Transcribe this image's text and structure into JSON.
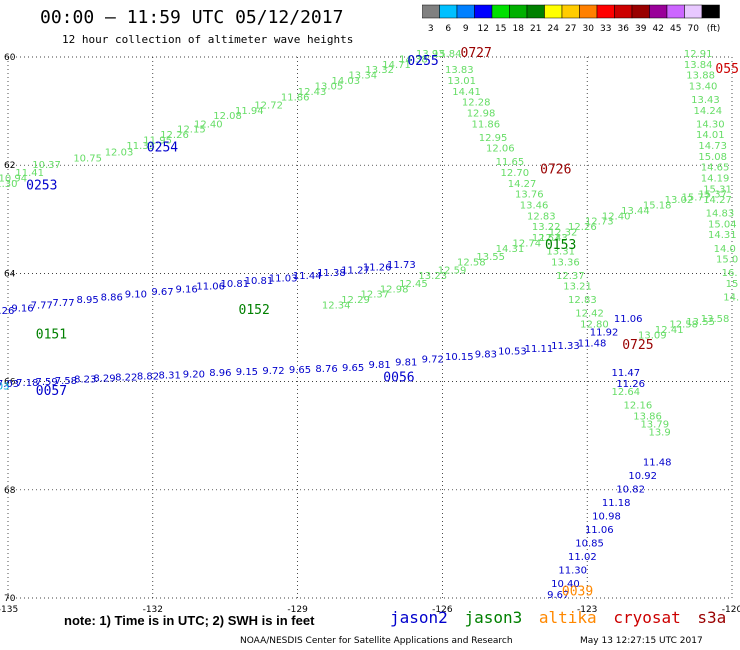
{
  "title": "00:00 – 11:59 UTC 05/12/2017",
  "subtitle": "12 hour collection of altimeter wave heights",
  "colorbar": {
    "units": "(ft)",
    "levels": [
      {
        "label": "3",
        "color": "#808080"
      },
      {
        "label": "6",
        "color": "#00c0ff"
      },
      {
        "label": "9",
        "color": "#0080ff"
      },
      {
        "label": "12",
        "color": "#0000ff"
      },
      {
        "label": "15",
        "color": "#00e000"
      },
      {
        "label": "18",
        "color": "#00b000"
      },
      {
        "label": "21",
        "color": "#008000"
      },
      {
        "label": "24",
        "color": "#ffff00"
      },
      {
        "label": "27",
        "color": "#ffcc00"
      },
      {
        "label": "30",
        "color": "#ff8000"
      },
      {
        "label": "33",
        "color": "#ff0000"
      },
      {
        "label": "36",
        "color": "#cc0000"
      },
      {
        "label": "39",
        "color": "#990000"
      },
      {
        "label": "42",
        "color": "#990099"
      },
      {
        "label": "45",
        "color": "#cc66ff"
      },
      {
        "label": "70",
        "color": "#e8c8ff"
      },
      {
        "label": "",
        "color": "#000000"
      }
    ]
  },
  "axes": {
    "lat_labels": [
      "60",
      "62",
      "64",
      "66",
      "68",
      "70"
    ],
    "lon_labels": [
      "-135",
      "-132",
      "-129",
      "-126",
      "-123",
      "-120"
    ]
  },
  "tracks": [
    {
      "color": "#66dd66",
      "points": [
        {
          "lon": -125.9,
          "lat": 60.0,
          "v": "15.84"
        },
        {
          "lon": -126.25,
          "lat": 60.0,
          "v": "13.93"
        },
        {
          "lon": -126.6,
          "lat": 60.1,
          "v": "14.38"
        },
        {
          "lon": -126.95,
          "lat": 60.2,
          "v": "14.71"
        },
        {
          "lon": -127.3,
          "lat": 60.3,
          "v": "13.32"
        },
        {
          "lon": -127.65,
          "lat": 60.4,
          "v": "13.34"
        },
        {
          "lon": -128.0,
          "lat": 60.5,
          "v": "14.03"
        },
        {
          "lon": -128.35,
          "lat": 60.6,
          "v": "13.05"
        },
        {
          "lon": -128.7,
          "lat": 60.7,
          "v": "12.43"
        },
        {
          "lon": -129.05,
          "lat": 60.8,
          "v": "11.86"
        },
        {
          "lon": -129.6,
          "lat": 60.95,
          "v": "12.72"
        },
        {
          "lon": -130.0,
          "lat": 61.05,
          "v": "11.94"
        },
        {
          "lon": -130.45,
          "lat": 61.15,
          "v": "12.08"
        },
        {
          "lon": -130.85,
          "lat": 61.3,
          "v": "12.40"
        },
        {
          "lon": -131.2,
          "lat": 61.4,
          "v": "12.15"
        },
        {
          "lon": -131.55,
          "lat": 61.5,
          "v": "12.26"
        },
        {
          "lon": -131.9,
          "lat": 61.6,
          "v": "11.95"
        },
        {
          "lon": -132.25,
          "lat": 61.7,
          "v": "11.33"
        },
        {
          "lon": -132.7,
          "lat": 61.82,
          "v": "12.03"
        },
        {
          "lon": -133.35,
          "lat": 61.93,
          "v": "10.75"
        },
        {
          "lon": -134.2,
          "lat": 62.05,
          "v": "10.37"
        },
        {
          "lon": -134.55,
          "lat": 62.2,
          "v": "11.41"
        },
        {
          "lon": -134.9,
          "lat": 62.3,
          "v": "10.94"
        },
        {
          "lon": -135.1,
          "lat": 62.4,
          "v": "11.30"
        }
      ]
    },
    {
      "color": "#66dd66",
      "points": [
        {
          "lon": -125.65,
          "lat": 60.3,
          "v": "13.83"
        },
        {
          "lon": -125.6,
          "lat": 60.5,
          "v": "13.01"
        },
        {
          "lon": -125.5,
          "lat": 60.7,
          "v": "14.41"
        },
        {
          "lon": -125.3,
          "lat": 60.9,
          "v": "12.28"
        },
        {
          "lon": -125.2,
          "lat": 61.1,
          "v": "12.98"
        },
        {
          "lon": -125.1,
          "lat": 61.3,
          "v": "11.86"
        },
        {
          "lon": -124.95,
          "lat": 61.55,
          "v": "12.95"
        },
        {
          "lon": -124.8,
          "lat": 61.75,
          "v": "12.06"
        },
        {
          "lon": -124.6,
          "lat": 62.0,
          "v": "11.65"
        },
        {
          "lon": -124.5,
          "lat": 62.2,
          "v": "12.70"
        },
        {
          "lon": -124.35,
          "lat": 62.4,
          "v": "14.27"
        },
        {
          "lon": -124.2,
          "lat": 62.6,
          "v": "13.76"
        },
        {
          "lon": -124.1,
          "lat": 62.8,
          "v": "13.46"
        },
        {
          "lon": -123.95,
          "lat": 63.0,
          "v": "12.83"
        },
        {
          "lon": -123.85,
          "lat": 63.2,
          "v": "13.22"
        },
        {
          "lon": -123.7,
          "lat": 63.4,
          "v": "12.43"
        },
        {
          "lon": -123.55,
          "lat": 63.65,
          "v": "13.31"
        },
        {
          "lon": -123.45,
          "lat": 63.85,
          "v": "13.36"
        },
        {
          "lon": -123.35,
          "lat": 64.1,
          "v": "12.37"
        },
        {
          "lon": -123.2,
          "lat": 64.3,
          "v": "13.21"
        },
        {
          "lon": -123.1,
          "lat": 64.55,
          "v": "12.83"
        },
        {
          "lon": -122.95,
          "lat": 64.8,
          "v": "12.42"
        },
        {
          "lon": -122.85,
          "lat": 65.0,
          "v": "12.80"
        }
      ]
    },
    {
      "color": "#66dd66",
      "points": [
        {
          "lon": -120.7,
          "lat": 60.0,
          "v": "12.91"
        },
        {
          "lon": -120.7,
          "lat": 60.2,
          "v": "13.84"
        },
        {
          "lon": -120.65,
          "lat": 60.4,
          "v": "13.88"
        },
        {
          "lon": -120.6,
          "lat": 60.6,
          "v": "13.40"
        },
        {
          "lon": -120.55,
          "lat": 60.85,
          "v": "13.43"
        },
        {
          "lon": -120.5,
          "lat": 61.05,
          "v": "14.24"
        },
        {
          "lon": -120.45,
          "lat": 61.3,
          "v": "14.30"
        },
        {
          "lon": -120.45,
          "lat": 61.5,
          "v": "14.01"
        },
        {
          "lon": -120.4,
          "lat": 61.7,
          "v": "14.73"
        },
        {
          "lon": -120.4,
          "lat": 61.9,
          "v": "15.08"
        },
        {
          "lon": -120.35,
          "lat": 62.1,
          "v": "14.65"
        },
        {
          "lon": -120.35,
          "lat": 62.3,
          "v": "14.19"
        },
        {
          "lon": -120.3,
          "lat": 62.5,
          "v": "15.31"
        },
        {
          "lon": -120.3,
          "lat": 62.7,
          "v": "14.27"
        },
        {
          "lon": -120.25,
          "lat": 62.95,
          "v": "14.83"
        },
        {
          "lon": -120.2,
          "lat": 63.15,
          "v": "15.04"
        },
        {
          "lon": -120.2,
          "lat": 63.35,
          "v": "14.31"
        },
        {
          "lon": -120.15,
          "lat": 63.6,
          "v": "14.0"
        },
        {
          "lon": -120.1,
          "lat": 63.8,
          "v": "15.0"
        },
        {
          "lon": -120.05,
          "lat": 64.05,
          "v": "16."
        },
        {
          "lon": -120.0,
          "lat": 64.25,
          "v": "15"
        },
        {
          "lon": -119.95,
          "lat": 64.5,
          "v": "14.1"
        }
      ]
    },
    {
      "color": "#66dd66",
      "points": [
        {
          "lon": -120.4,
          "lat": 62.6,
          "v": "15.37"
        },
        {
          "lon": -120.75,
          "lat": 62.65,
          "v": "15.77"
        },
        {
          "lon": -121.1,
          "lat": 62.7,
          "v": "13.02"
        },
        {
          "lon": -121.55,
          "lat": 62.8,
          "v": "15.18"
        },
        {
          "lon": -122.0,
          "lat": 62.9,
          "v": "13.44"
        },
        {
          "lon": -122.4,
          "lat": 63.0,
          "v": "12.40"
        },
        {
          "lon": -122.75,
          "lat": 63.1,
          "v": "12.73"
        },
        {
          "lon": -123.1,
          "lat": 63.2,
          "v": "12.26"
        },
        {
          "lon": -123.5,
          "lat": 63.3,
          "v": "12.32"
        },
        {
          "lon": -123.85,
          "lat": 63.4,
          "v": "12.57"
        },
        {
          "lon": -124.25,
          "lat": 63.5,
          "v": "12.74"
        },
        {
          "lon": -124.6,
          "lat": 63.6,
          "v": "14.31"
        },
        {
          "lon": -125.0,
          "lat": 63.75,
          "v": "13.55"
        },
        {
          "lon": -125.4,
          "lat": 63.85,
          "v": "12.58"
        },
        {
          "lon": -125.8,
          "lat": 64.0,
          "v": "12.59"
        },
        {
          "lon": -126.2,
          "lat": 64.1,
          "v": "13.23"
        },
        {
          "lon": -126.6,
          "lat": 64.25,
          "v": "12.45"
        },
        {
          "lon": -127.0,
          "lat": 64.35,
          "v": "12.98"
        },
        {
          "lon": -127.4,
          "lat": 64.45,
          "v": "12.37"
        },
        {
          "lon": -127.8,
          "lat": 64.55,
          "v": "12.29"
        },
        {
          "lon": -128.2,
          "lat": 64.65,
          "v": "12.34"
        }
      ]
    },
    {
      "color": "#66dd66",
      "points": [
        {
          "lon": -120.35,
          "lat": 64.9,
          "v": "13.58"
        },
        {
          "lon": -120.65,
          "lat": 64.95,
          "v": "13.55"
        },
        {
          "lon": -121.0,
          "lat": 65.0,
          "v": "12.58"
        },
        {
          "lon": -121.3,
          "lat": 65.1,
          "v": "12.41"
        },
        {
          "lon": -121.65,
          "lat": 65.2,
          "v": "13.09"
        }
      ]
    },
    {
      "color": "#66dd66",
      "points": [
        {
          "lon": -122.2,
          "lat": 66.25,
          "v": "12.64"
        },
        {
          "lon": -121.95,
          "lat": 66.5,
          "v": "12.16"
        },
        {
          "lon": -121.75,
          "lat": 66.7,
          "v": "13.86"
        },
        {
          "lon": -121.6,
          "lat": 66.85,
          "v": "13.79"
        },
        {
          "lon": -121.5,
          "lat": 67.0,
          "v": "13.9"
        }
      ]
    },
    {
      "color": "#0000cc",
      "points": [
        {
          "lon": -122.15,
          "lat": 64.9,
          "v": "11.06"
        },
        {
          "lon": -122.65,
          "lat": 65.15,
          "v": "11.92"
        },
        {
          "lon": -122.2,
          "lat": 65.9,
          "v": "11.47"
        },
        {
          "lon": -122.1,
          "lat": 66.1,
          "v": "11.26"
        }
      ]
    },
    {
      "color": "#0000cc",
      "points": [
        {
          "lon": -121.55,
          "lat": 67.55,
          "v": "11.48"
        },
        {
          "lon": -121.85,
          "lat": 67.8,
          "v": "10.92"
        },
        {
          "lon": -122.1,
          "lat": 68.05,
          "v": "10.82"
        },
        {
          "lon": -122.4,
          "lat": 68.3,
          "v": "11.18"
        },
        {
          "lon": -122.6,
          "lat": 68.55,
          "v": "10.98"
        },
        {
          "lon": -122.75,
          "lat": 68.8,
          "v": "11.06"
        },
        {
          "lon": -122.95,
          "lat": 69.05,
          "v": "10.85"
        },
        {
          "lon": -123.1,
          "lat": 69.3,
          "v": "11.02"
        },
        {
          "lon": -123.3,
          "lat": 69.55,
          "v": "11.30"
        },
        {
          "lon": -123.45,
          "lat": 69.8,
          "v": "10.40"
        },
        {
          "lon": -123.6,
          "lat": 70.0,
          "v": "9.67"
        }
      ]
    },
    {
      "color": "#0000cc",
      "points": [
        {
          "lon": -135.1,
          "lat": 64.75,
          "v": "8.26"
        },
        {
          "lon": -134.7,
          "lat": 64.7,
          "v": "9.16"
        },
        {
          "lon": -134.3,
          "lat": 64.65,
          "v": "7.77"
        },
        {
          "lon": -133.85,
          "lat": 64.6,
          "v": "7.77"
        },
        {
          "lon": -133.35,
          "lat": 64.55,
          "v": "8.95"
        },
        {
          "lon": -132.85,
          "lat": 64.5,
          "v": "8.86"
        },
        {
          "lon": -132.35,
          "lat": 64.45,
          "v": "9.10"
        },
        {
          "lon": -131.8,
          "lat": 64.4,
          "v": "9.67"
        },
        {
          "lon": -131.3,
          "lat": 64.35,
          "v": "9.16"
        },
        {
          "lon": -130.8,
          "lat": 64.3,
          "v": "11.06"
        },
        {
          "lon": -130.3,
          "lat": 64.25,
          "v": "10.81"
        },
        {
          "lon": -129.8,
          "lat": 64.2,
          "v": "10.81"
        },
        {
          "lon": -129.3,
          "lat": 64.15,
          "v": "11.03"
        },
        {
          "lon": -128.8,
          "lat": 64.1,
          "v": "11.44"
        },
        {
          "lon": -128.3,
          "lat": 64.05,
          "v": "11.38"
        },
        {
          "lon": -127.8,
          "lat": 64.0,
          "v": "11.27"
        },
        {
          "lon": -127.35,
          "lat": 63.95,
          "v": "11.26"
        },
        {
          "lon": -126.85,
          "lat": 63.9,
          "v": "11.73"
        }
      ]
    },
    {
      "color": "#0000cc",
      "points": [
        {
          "lon": -135.0,
          "lat": 66.1,
          "v": "7.03"
        },
        {
          "lon": -134.6,
          "lat": 66.08,
          "v": "7.18"
        },
        {
          "lon": -134.2,
          "lat": 66.06,
          "v": "7.59"
        },
        {
          "lon": -133.8,
          "lat": 66.04,
          "v": "7.58"
        },
        {
          "lon": -133.4,
          "lat": 66.02,
          "v": "8.23"
        },
        {
          "lon": -133.0,
          "lat": 66.0,
          "v": "8.29"
        },
        {
          "lon": -132.55,
          "lat": 65.98,
          "v": "8.22"
        },
        {
          "lon": -132.1,
          "lat": 65.96,
          "v": "8.82"
        },
        {
          "lon": -131.65,
          "lat": 65.94,
          "v": "8.31"
        },
        {
          "lon": -131.15,
          "lat": 65.92,
          "v": "9.20"
        },
        {
          "lon": -130.6,
          "lat": 65.9,
          "v": "8.96"
        },
        {
          "lon": -130.05,
          "lat": 65.88,
          "v": "9.15"
        },
        {
          "lon": -129.5,
          "lat": 65.86,
          "v": "9.72"
        },
        {
          "lon": -128.95,
          "lat": 65.84,
          "v": "9.65"
        },
        {
          "lon": -128.4,
          "lat": 65.82,
          "v": "8.76"
        },
        {
          "lon": -127.85,
          "lat": 65.8,
          "v": "9.65"
        },
        {
          "lon": -127.3,
          "lat": 65.75,
          "v": "9.81"
        },
        {
          "lon": -126.75,
          "lat": 65.7,
          "v": "9.81"
        },
        {
          "lon": -126.2,
          "lat": 65.65,
          "v": "9.72"
        },
        {
          "lon": -125.65,
          "lat": 65.6,
          "v": "10.15"
        },
        {
          "lon": -125.1,
          "lat": 65.55,
          "v": "9.83"
        },
        {
          "lon": -124.55,
          "lat": 65.5,
          "v": "10.53"
        },
        {
          "lon": -124.0,
          "lat": 65.45,
          "v": "11.11"
        },
        {
          "lon": -123.45,
          "lat": 65.4,
          "v": "11.33"
        },
        {
          "lon": -122.9,
          "lat": 65.35,
          "v": "11.48"
        }
      ]
    },
    {
      "color": "#00aadd",
      "points": [
        {
          "lon": -135.2,
          "lat": 66.15,
          "v": "7.03"
        }
      ]
    }
  ],
  "pass_labels": [
    {
      "text": "0253",
      "lon": -134.3,
      "lat": 62.45,
      "color": "#0000cc"
    },
    {
      "text": "0254",
      "lon": -131.8,
      "lat": 61.75,
      "color": "#0000cc"
    },
    {
      "text": "0255",
      "lon": -126.4,
      "lat": 60.15,
      "color": "#0000cc"
    },
    {
      "text": "0727",
      "lon": -125.3,
      "lat": 60.0,
      "color": "#990000"
    },
    {
      "text": "055",
      "lon": -120.1,
      "lat": 60.3,
      "color": "#cc0000"
    },
    {
      "text": "0726",
      "lon": -123.65,
      "lat": 62.15,
      "color": "#990000"
    },
    {
      "text": "0153",
      "lon": -123.55,
      "lat": 63.55,
      "color": "#008000"
    },
    {
      "text": "0152",
      "lon": -129.9,
      "lat": 64.75,
      "color": "#008000"
    },
    {
      "text": "0151",
      "lon": -134.1,
      "lat": 65.2,
      "color": "#008000"
    },
    {
      "text": "0056",
      "lon": -126.9,
      "lat": 66.0,
      "color": "#0000cc"
    },
    {
      "text": "0057",
      "lon": -134.1,
      "lat": 66.25,
      "color": "#0000cc"
    },
    {
      "text": "0725",
      "lon": -121.95,
      "lat": 65.4,
      "color": "#990000"
    },
    {
      "text": "0039",
      "lon": -123.2,
      "lat": 69.95,
      "color": "#ff8800"
    }
  ],
  "note": "note:  1) Time is in UTC;  2) SWH is in feet",
  "legend": [
    {
      "label": "jason2",
      "color": "#0000cc"
    },
    {
      "label": "jason3",
      "color": "#008000"
    },
    {
      "label": "altika",
      "color": "#ff8800"
    },
    {
      "label": "cryosat",
      "color": "#cc0000"
    },
    {
      "label": "s3a",
      "color": "#990000"
    }
  ],
  "credit": "NOAA/NESDIS Center for Satellite Applications and Research",
  "timestamp": "May 13 12:27:15 UTC 2017"
}
